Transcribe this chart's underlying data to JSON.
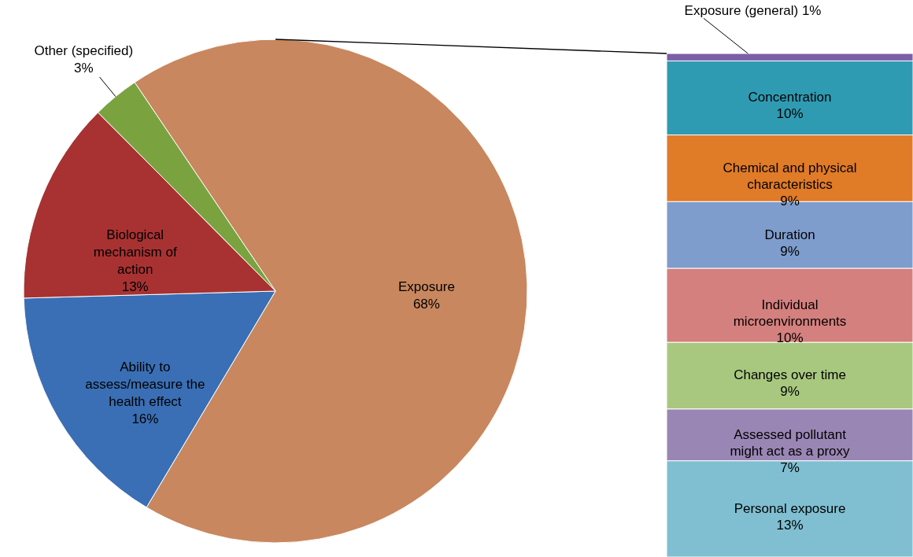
{
  "chart_data": [
    {
      "type": "pie",
      "categories": [
        "Exposure",
        "Ability to assess/measure the health effect",
        "Biological mechanism of action",
        "Other (specified)"
      ],
      "values": [
        68,
        16,
        13,
        3
      ],
      "value_labels": [
        "68%",
        "16%",
        "13%",
        "3%"
      ],
      "colors": [
        "#c8875e",
        "#3a6fb5",
        "#a83232",
        "#7aa33f"
      ]
    },
    {
      "type": "bar",
      "stacked": true,
      "categories": [
        null
      ],
      "tick_labels": false,
      "series": [
        {
          "name": "Personal exposure",
          "color": "#7fbfd1",
          "values": [
            13
          ],
          "value_labels": [
            "13%"
          ]
        },
        {
          "name": "Assessed pollutant might act as a proxy",
          "color": "#9a86b4",
          "values": [
            7
          ],
          "value_labels": [
            "7%"
          ]
        },
        {
          "name": "Changes over time",
          "color": "#a8c880",
          "values": [
            9
          ],
          "value_labels": [
            "9%"
          ]
        },
        {
          "name": "Individual microenvironments",
          "color": "#d4807e",
          "values": [
            10
          ],
          "value_labels": [
            "10%"
          ]
        },
        {
          "name": "Duration",
          "color": "#7e9ccc",
          "values": [
            9
          ],
          "value_labels": [
            "9%"
          ]
        },
        {
          "name": "Chemical and physical characteristics",
          "color": "#e07b28",
          "values": [
            9
          ],
          "value_labels": [
            "9%"
          ]
        },
        {
          "name": "Concentration",
          "color": "#2f9bb3",
          "values": [
            10
          ],
          "value_labels": [
            "10%"
          ]
        },
        {
          "name": "Exposure (general)",
          "color": "#7b5ea7",
          "values": [
            1
          ],
          "value_labels": [
            "1%"
          ]
        }
      ]
    }
  ]
}
